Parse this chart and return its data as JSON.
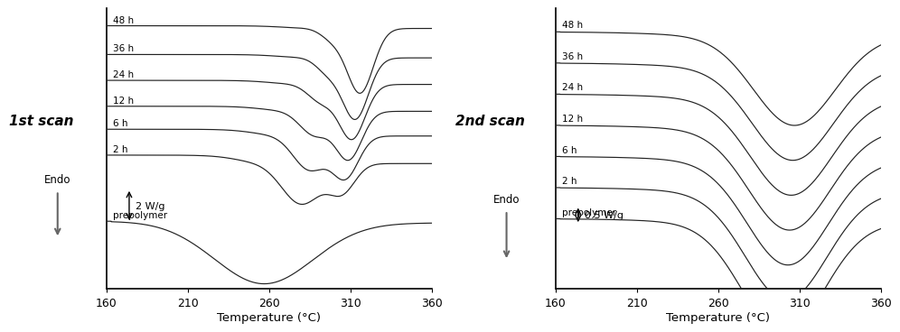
{
  "xlim": [
    160,
    360
  ],
  "xlabel": "Temperature (°C)",
  "xticks": [
    160,
    210,
    260,
    310,
    360
  ],
  "background_color": "#ffffff",
  "line_color": "#222222",
  "scan1": {
    "title": "1st scan",
    "scale_label": "2 W/g",
    "labels": [
      "48 h",
      "36 h",
      "24 h",
      "12 h",
      "6 h",
      "2 h",
      "prepolymer"
    ],
    "offsets": [
      6.8,
      5.8,
      4.9,
      4.0,
      3.2,
      2.3,
      0.0
    ],
    "scale_arrow_size": 1.2
  },
  "scan2": {
    "title": "2nd scan",
    "scale_label": "0.5 W/g",
    "labels": [
      "48 h",
      "36 h",
      "24 h",
      "12 h",
      "6 h",
      "2 h",
      "prepolymer"
    ],
    "offsets": [
      6.0,
      5.2,
      4.4,
      3.6,
      2.8,
      2.0,
      1.2
    ],
    "scale_arrow_size": 0.5
  }
}
